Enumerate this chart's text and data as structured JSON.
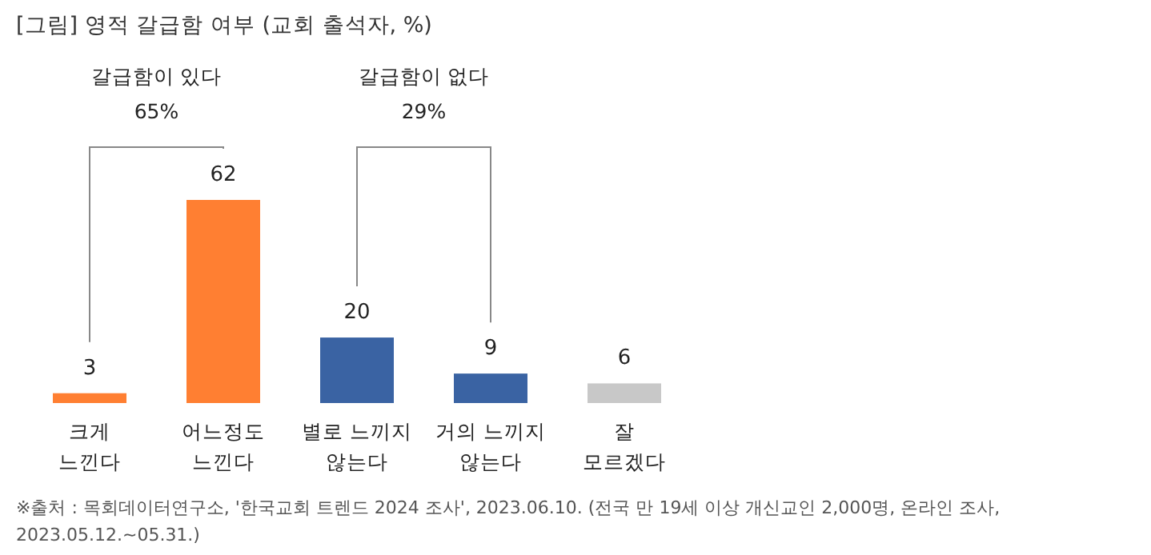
{
  "chart_data": {
    "type": "bar",
    "title": "[그림] 영적 갈급함 여부 (교회 출석자, %)",
    "categories": [
      "크게 느낀다",
      "어느정도 느낀다",
      "별로 느끼지 않는다",
      "거의 느끼지 않는다",
      "잘 모르겠다"
    ],
    "values": [
      3,
      62,
      20,
      9,
      6
    ],
    "colors": [
      "#ff7f32",
      "#ff7f32",
      "#3a63a3",
      "#3a63a3",
      "#c8c8c8"
    ],
    "data_labels": true,
    "annotations": [
      "갈급함이 있다",
      "65%",
      "갈급함이 없다",
      "29%",
      "※출처 : 목회데이터연구소, '한국교회 트렌드 2024 조사', 2023.06.10. (전국 만 19세 이상 개신교인 2,000명, 온라인 조사, 2023.05.12.~05.31.)"
    ]
  }
}
